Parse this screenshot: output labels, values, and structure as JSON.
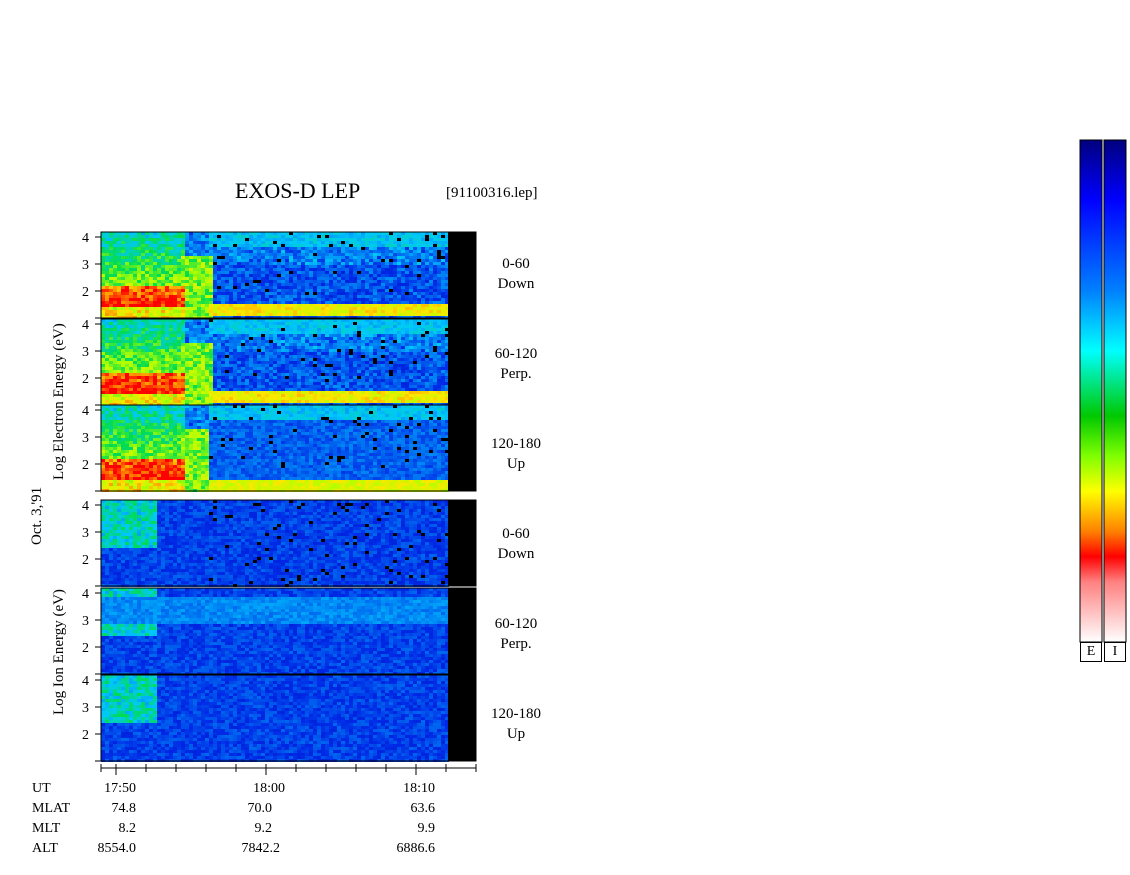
{
  "title": "EXOS-D LEP",
  "file_label": "[91100316.lep]",
  "date_label": "Oct. 3,'91",
  "electron_axis_label": "Log  Electron  Energy  (eV)",
  "ion_axis_label": "Log    Ion    Energy  (eV)",
  "colorbar_labels": [
    "E",
    "I"
  ],
  "colors": {
    "background_dark": "#00008b",
    "mask": "#000000",
    "low": "#0000c8",
    "mid": "#00c8ff",
    "green": "#00c800",
    "yellow": "#ffff00",
    "high": "#ff0000"
  },
  "time_axis": {
    "rows": [
      {
        "name": "UT",
        "values": [
          "17:50",
          "18:00",
          "18:10"
        ]
      },
      {
        "name": "MLAT",
        "values": [
          "74.8",
          "70.0",
          "63.6"
        ]
      },
      {
        "name": "MLT",
        "values": [
          "8.2",
          "9.2",
          "9.9"
        ]
      },
      {
        "name": "ALT",
        "values": [
          "8554.0",
          "7842.2",
          "6886.6"
        ]
      }
    ]
  },
  "chart_data": {
    "type": "heatmap",
    "title": "EXOS-D LEP",
    "x_range_minutes": [
      17.8,
      18.22
    ],
    "panels": [
      {
        "species": "Electron",
        "pitch_angle": "0-60",
        "direction": "Down",
        "yticks": [
          "4",
          "3",
          "2"
        ],
        "ylim": [
          1,
          4.2
        ]
      },
      {
        "species": "Electron",
        "pitch_angle": "60-120",
        "direction": "Perp.",
        "yticks": [
          "4",
          "3",
          "2"
        ],
        "ylim": [
          1,
          4.2
        ]
      },
      {
        "species": "Electron",
        "pitch_angle": "120-180",
        "direction": "Up",
        "yticks": [
          "4",
          "3",
          "2"
        ],
        "ylim": [
          1,
          4.2
        ]
      },
      {
        "species": "Ion",
        "pitch_angle": "0-60",
        "direction": "Down",
        "yticks": [
          "4",
          "3",
          "2"
        ],
        "ylim": [
          1,
          4.2
        ]
      },
      {
        "species": "Ion",
        "pitch_angle": "60-120",
        "direction": "Perp.",
        "yticks": [
          "4",
          "3",
          "2"
        ],
        "ylim": [
          1,
          4.2
        ]
      },
      {
        "species": "Ion",
        "pitch_angle": "120-180",
        "direction": "Up",
        "yticks": [
          "4",
          "3",
          "2"
        ],
        "ylim": [
          1,
          4.2
        ]
      }
    ],
    "xticks": [
      "17:50",
      "18:00",
      "18:10"
    ]
  }
}
